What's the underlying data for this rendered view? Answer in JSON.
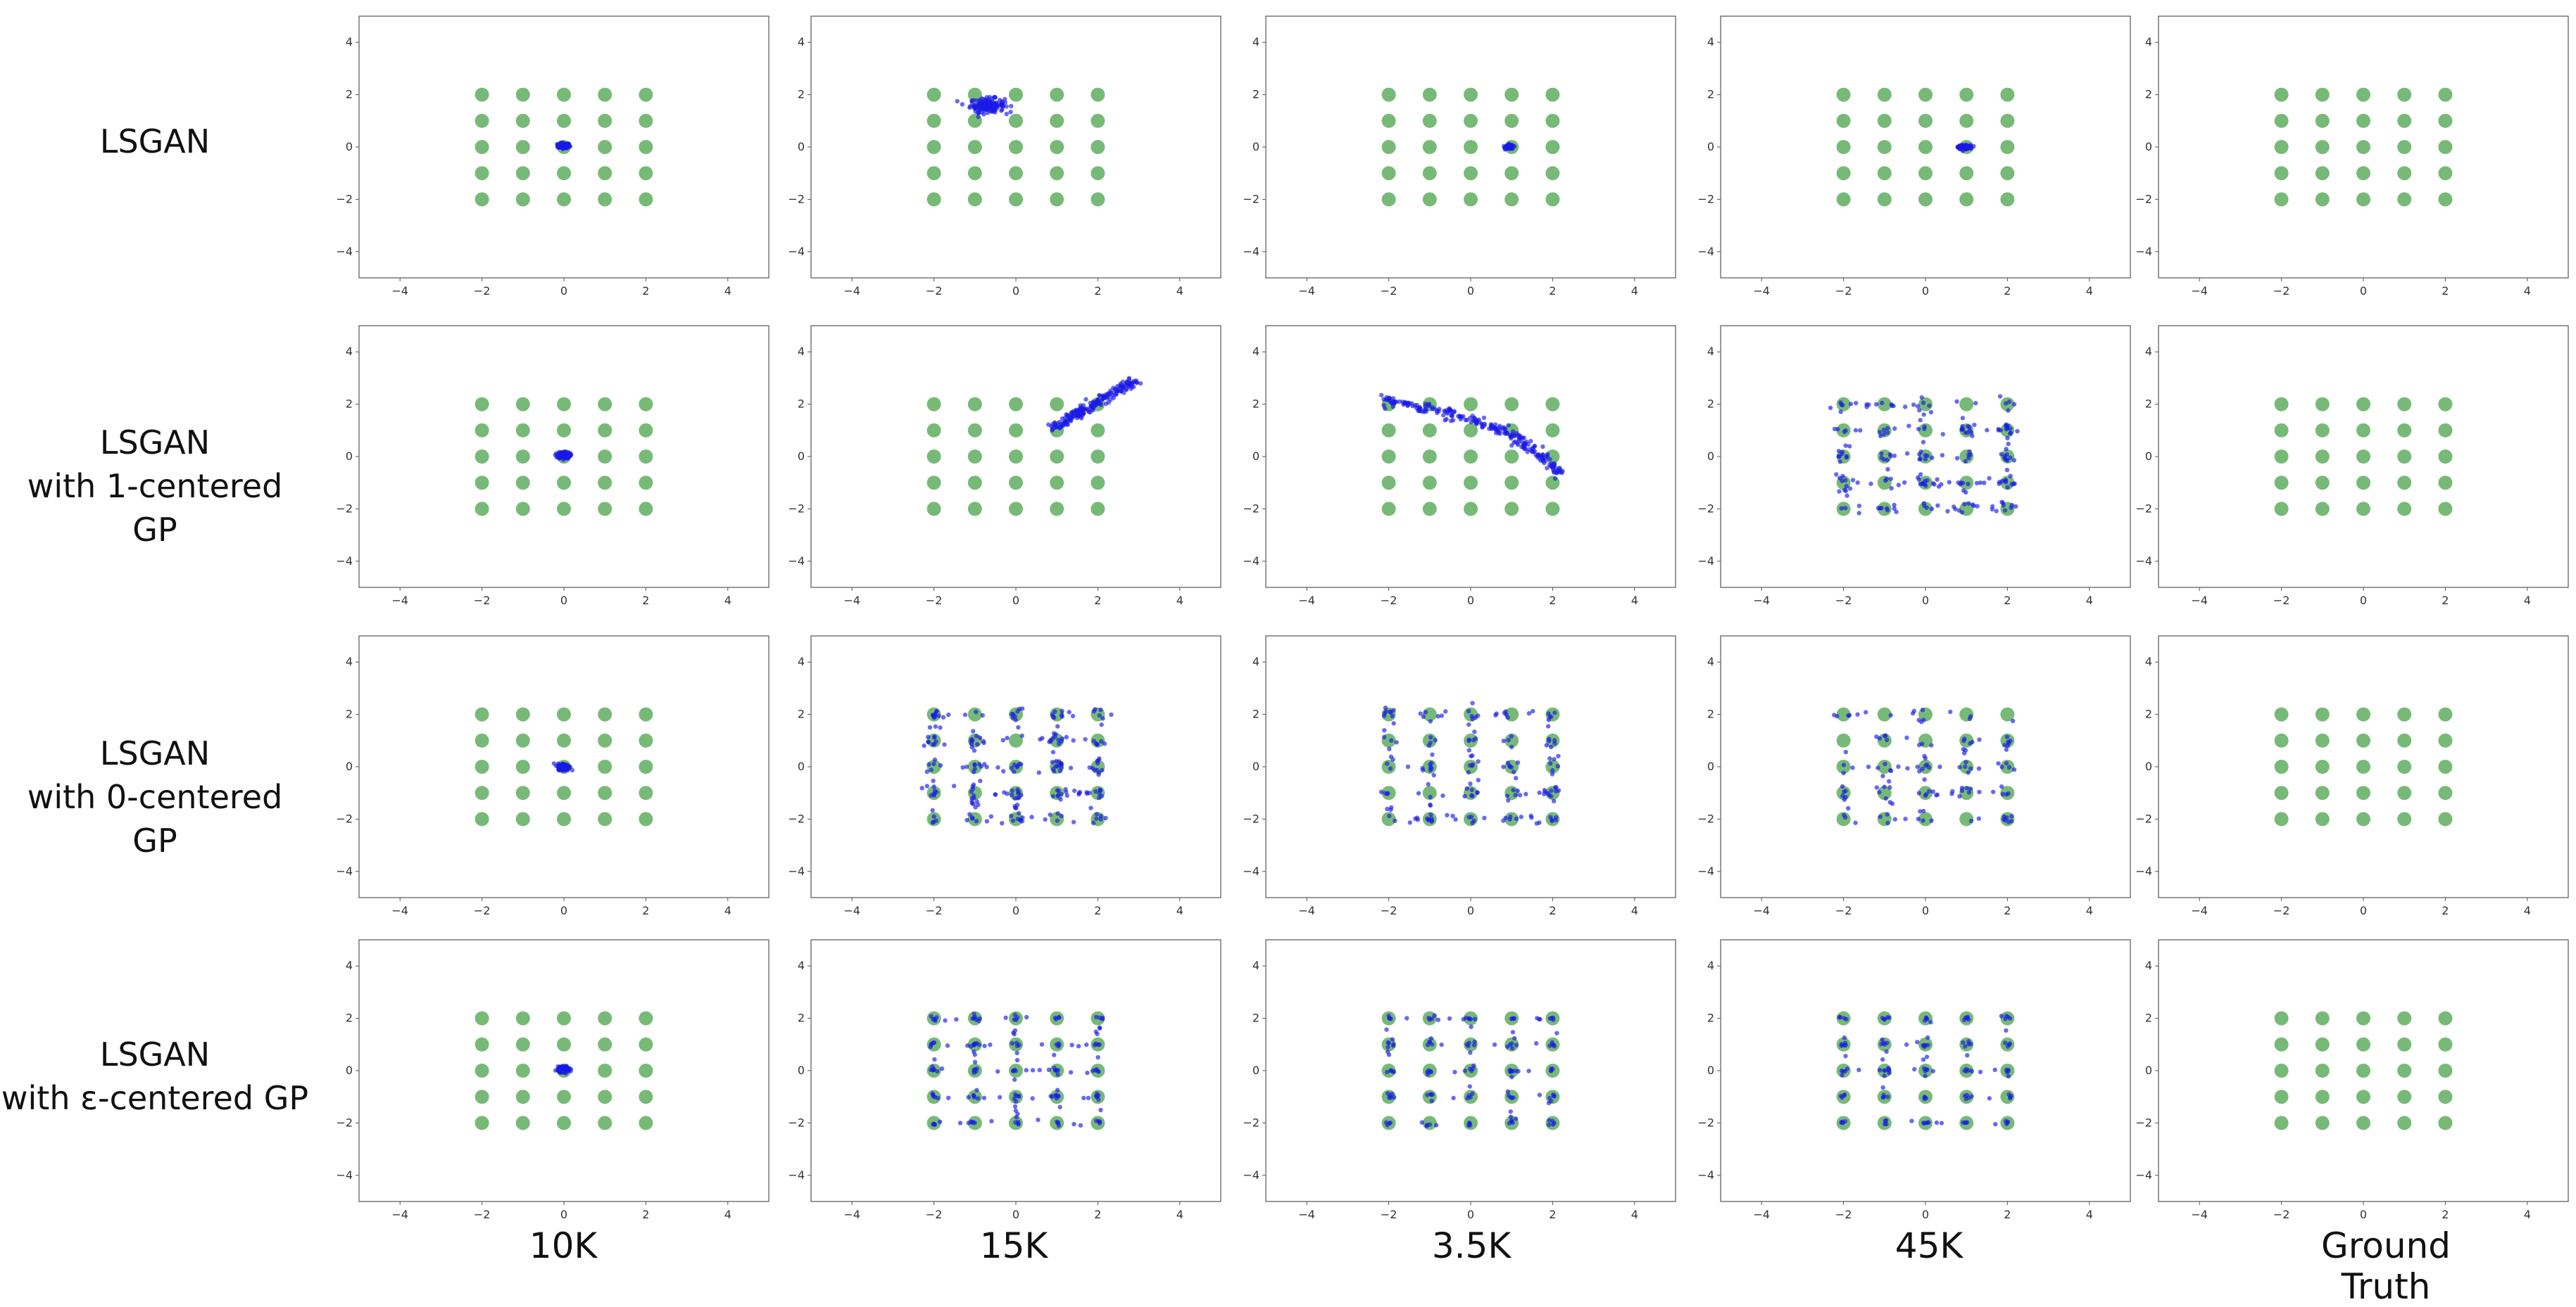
{
  "row_labels": [
    {
      "line1": "LSGAN",
      "line2": ""
    },
    {
      "line1": "LSGAN",
      "line2": "with 1-centered GP"
    },
    {
      "line1": "LSGAN",
      "line2": "with 0-centered GP"
    },
    {
      "line1": "LSGAN",
      "line2": "with ε-centered GP"
    }
  ],
  "col_labels": [
    "10K",
    "15K",
    "3.5K",
    "45K",
    "Ground Truth"
  ],
  "colors": {
    "real": "#5fae5f",
    "fake": "#1a1ae6",
    "frame": "#555555"
  },
  "chart_data": {
    "type": "scatter",
    "layout": "grid of 4 rows x 5 columns of scatter panels",
    "xlim": [
      -5,
      5
    ],
    "ylim": [
      -5,
      5
    ],
    "xticks": [
      "−4",
      "−2",
      "0",
      "2",
      "4"
    ],
    "yticks": [
      "−4",
      "−2",
      "0",
      "2",
      "4"
    ],
    "grid": false,
    "real_modes": {
      "x": [
        -2,
        -1,
        0,
        1,
        2
      ],
      "y": [
        -2,
        -1,
        0,
        1,
        2
      ]
    },
    "panels": [
      [
        {
          "fake": "cluster",
          "center": [
            0.0,
            0.05
          ],
          "spread": [
            0.12,
            0.08
          ]
        },
        {
          "fake": "cluster",
          "center": [
            -0.7,
            1.6
          ],
          "spread": [
            0.35,
            0.22
          ]
        },
        {
          "fake": "cluster",
          "center": [
            0.95,
            0.0
          ],
          "spread": [
            0.08,
            0.06
          ]
        },
        {
          "fake": "cluster",
          "center": [
            0.95,
            0.0
          ],
          "spread": [
            0.12,
            0.06
          ]
        },
        {
          "fake": "none"
        }
      ],
      [
        {
          "fake": "cluster",
          "center": [
            0.0,
            0.05
          ],
          "spread": [
            0.12,
            0.1
          ]
        },
        {
          "fake": "line",
          "from": [
            0.9,
            1.1
          ],
          "to": [
            2.9,
            2.9
          ],
          "spread": 0.18
        },
        {
          "fake": "curve",
          "points": [
            [
              -2.1,
              2.2
            ],
            [
              -1.0,
              1.8
            ],
            [
              0.0,
              1.4
            ],
            [
              0.8,
              1.0
            ],
            [
              1.5,
              0.3
            ],
            [
              2.2,
              -0.7
            ]
          ],
          "spread": 0.15
        },
        {
          "fake": "grid-scatter",
          "density": 2.0
        },
        {
          "fake": "none"
        }
      ],
      [
        {
          "fake": "cluster",
          "center": [
            0.0,
            0.0
          ],
          "spread": [
            0.12,
            0.1
          ]
        },
        {
          "fake": "grid-scatter",
          "density": 2.2
        },
        {
          "fake": "grid-scatter",
          "density": 1.6
        },
        {
          "fake": "grid-scatter",
          "density": 1.2
        },
        {
          "fake": "none"
        }
      ],
      [
        {
          "fake": "cluster",
          "center": [
            0.0,
            0.05
          ],
          "spread": [
            0.12,
            0.08
          ]
        },
        {
          "fake": "modes",
          "density": 1.0
        },
        {
          "fake": "modes",
          "density": 0.6
        },
        {
          "fake": "modes",
          "density": 0.5
        },
        {
          "fake": "none"
        }
      ]
    ]
  }
}
